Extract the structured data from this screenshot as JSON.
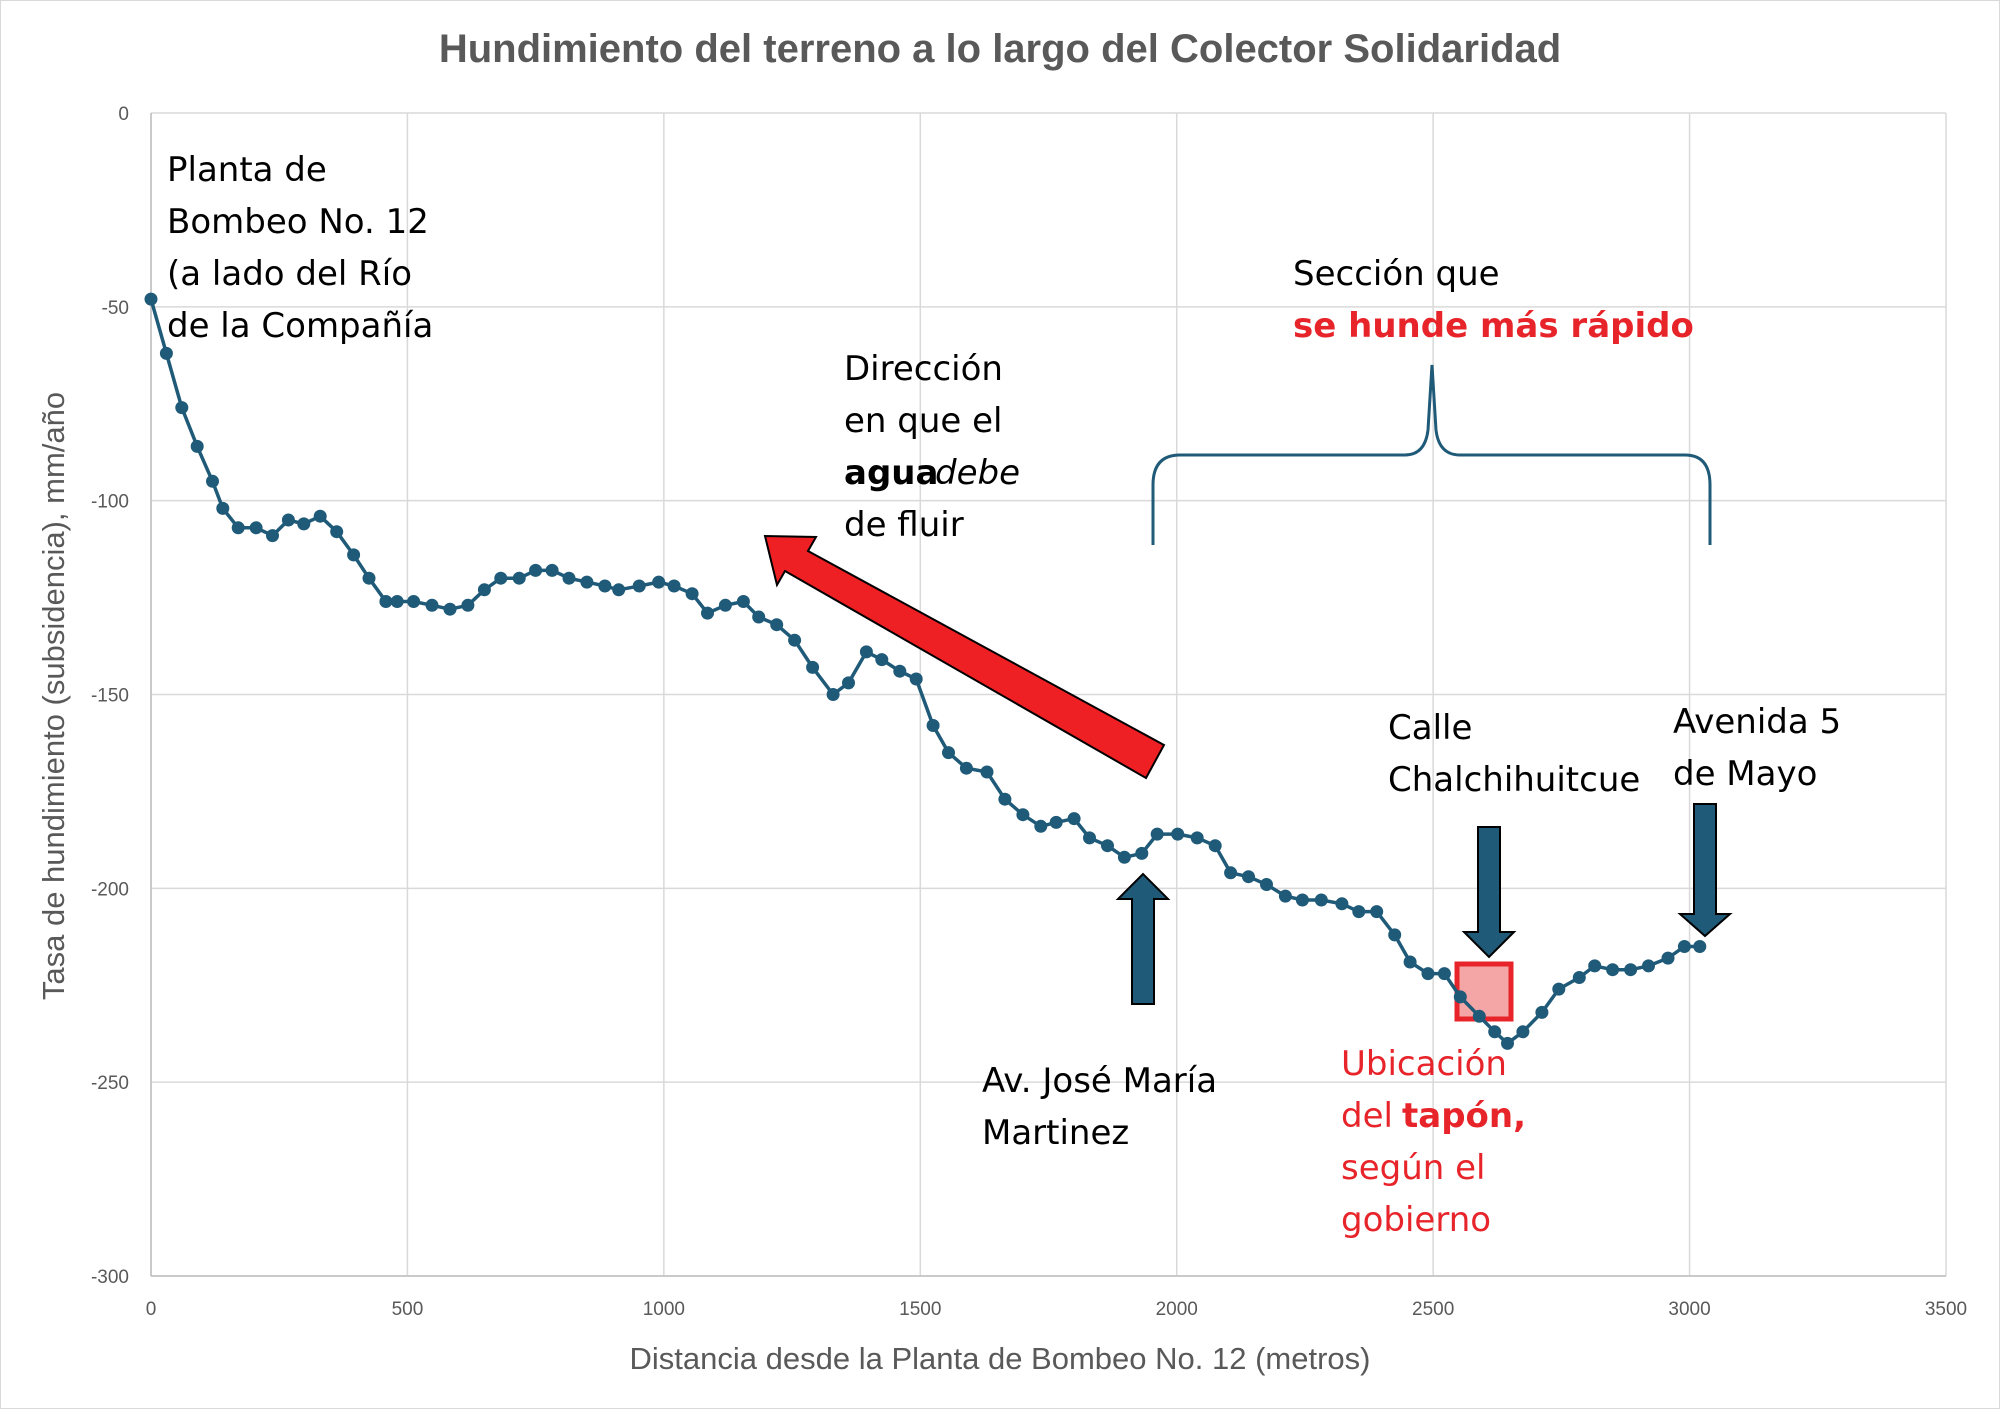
{
  "chart_data": {
    "type": "line",
    "title": "Hundimiento del terreno a lo largo del Colector Solidaridad",
    "xlabel": "Distancia desde la Planta de Bombeo No. 12 (metros)",
    "ylabel": "Tasa de hundimiento (subsidencia), mm/año",
    "xlim": [
      0,
      3500
    ],
    "ylim": [
      -300,
      0
    ],
    "x_ticks": [
      "0",
      "500",
      "1000",
      "1500",
      "2000",
      "2500",
      "3000",
      "3500"
    ],
    "y_ticks": [
      "0",
      "-50",
      "-100",
      "-150",
      "-200",
      "-250",
      "-300"
    ],
    "grid": true,
    "series": [
      {
        "name": "Tasa de hundimiento",
        "color": "#1f5a78",
        "x": [
          0,
          30,
          60,
          90,
          120,
          140,
          170,
          205,
          237,
          268,
          298,
          330,
          362,
          395,
          425,
          458,
          480,
          512,
          548,
          583,
          618,
          650,
          682,
          718,
          750,
          782,
          815,
          850,
          885,
          912,
          952,
          990,
          1020,
          1055,
          1085,
          1120,
          1155,
          1185,
          1220,
          1255,
          1290,
          1330,
          1360,
          1395,
          1425,
          1460,
          1492,
          1525,
          1555,
          1590,
          1630,
          1665,
          1700,
          1735,
          1765,
          1800,
          1830,
          1865,
          1898,
          1932,
          1962,
          2002,
          2040,
          2075,
          2105,
          2140,
          2175,
          2212,
          2245,
          2282,
          2322,
          2355,
          2390,
          2425,
          2455,
          2490,
          2522,
          2553,
          2590,
          2620,
          2645,
          2675,
          2712,
          2745,
          2785,
          2815,
          2850,
          2885,
          2920,
          2958,
          2990,
          3020
        ],
        "y": [
          -48,
          -62,
          -76,
          -86,
          -95,
          -102,
          -107,
          -107,
          -109,
          -105,
          -106,
          -104,
          -108,
          -114,
          -120,
          -126,
          -126,
          -126,
          -127,
          -128,
          -127,
          -123,
          -120,
          -120,
          -118,
          -118,
          -120,
          -121,
          -122,
          -123,
          -122,
          -121,
          -122,
          -124,
          -129,
          -127,
          -126,
          -130,
          -132,
          -136,
          -143,
          -150,
          -147,
          -139,
          -141,
          -144,
          -146,
          -158,
          -165,
          -169,
          -170,
          -177,
          -181,
          -184,
          -183,
          -182,
          -187,
          -189,
          -192,
          -191,
          -186,
          -186,
          -187,
          -189,
          -196,
          -197,
          -199,
          -202,
          -203,
          -203,
          -204,
          -206,
          -206,
          -212,
          -219,
          -222,
          -222,
          -228,
          -233,
          -237,
          -240,
          -237,
          -232,
          -226,
          -223,
          -220,
          -221,
          -221,
          -220,
          -218,
          -215,
          -215
        ]
      }
    ],
    "annotations": {
      "planta": [
        "Planta de",
        "Bombeo No. 12",
        "(a lado del Río",
        "de la Compañía"
      ],
      "direccion_1": "Dirección",
      "direccion_2": "en que el",
      "direccion_3a": "agua",
      "direccion_3b": "debe",
      "direccion_4": "de fluir",
      "seccion_1": "Sección que",
      "seccion_2": "se hunde más rápido",
      "calle": [
        "Calle",
        "Chalchihuitcue"
      ],
      "avenida": [
        "Avenida 5",
        "de Mayo"
      ],
      "avjose": [
        "Av. José María",
        "Martinez"
      ],
      "ubicacion_1": "Ubicación",
      "ubicacion_2a": "del",
      "ubicacion_2b": "tapón,",
      "ubicacion_3": "según el",
      "ubicacion_4": "gobierno"
    },
    "colors": {
      "series": "#1f5a78",
      "arrow_red": "#ee2024",
      "arrow_blue": "#1f5a78",
      "highlight": "#e8242b",
      "grid": "#d9d9d9"
    }
  }
}
